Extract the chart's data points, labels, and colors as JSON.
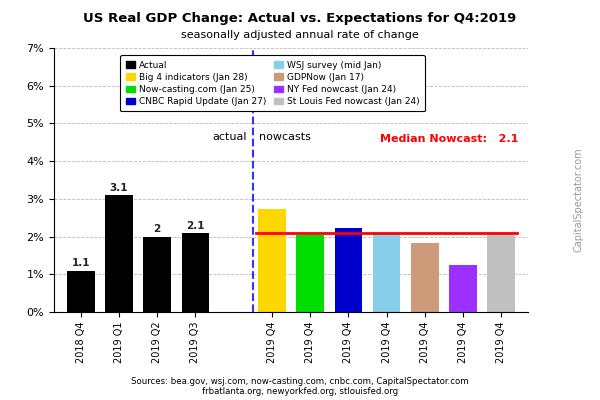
{
  "title": "US Real GDP Change: Actual vs. Expectations for Q4:2019",
  "subtitle": "seasonally adjusted annual rate of change",
  "actual_labels": [
    "2018 Q4",
    "2019 Q1",
    "2019 Q2",
    "2019 Q3"
  ],
  "actual_values": [
    1.1,
    3.1,
    2.0,
    2.1
  ],
  "actual_color": "#000000",
  "nowcast_labels": [
    "2019 Q4",
    "2019 Q4",
    "2019 Q4",
    "2019 Q4",
    "2019 Q4",
    "2019 Q4",
    "2019 Q4"
  ],
  "nowcast_values": [
    2.72,
    2.03,
    2.22,
    2.09,
    1.84,
    1.25,
    2.05
  ],
  "nowcast_colors": [
    "#FFD700",
    "#00DD00",
    "#0000CD",
    "#87CEEB",
    "#CD9B7A",
    "#9B30FF",
    "#C0C0C0"
  ],
  "median_nowcast": 2.1,
  "median_label": "Median Nowcast:",
  "ylim_max": 7,
  "ytick_vals": [
    0,
    1,
    2,
    3,
    4,
    5,
    6,
    7
  ],
  "ytick_labels": [
    "0%",
    "1%",
    "2%",
    "3%",
    "4%",
    "5%",
    "6%",
    "7%"
  ],
  "legend_entries": [
    {
      "label": "Actual",
      "color": "#000000"
    },
    {
      "label": "Big 4 indicators (Jan 28)",
      "color": "#FFD700"
    },
    {
      "label": "Now-casting.com (Jan 25)",
      "color": "#00DD00"
    },
    {
      "label": "CNBC Rapid Update (Jan 27)",
      "color": "#0000CD"
    },
    {
      "label": "WSJ survey (mid Jan)",
      "color": "#87CEEB"
    },
    {
      "label": "GDPNow (Jan 17)",
      "color": "#CD9B7A"
    },
    {
      "label": "NY Fed nowcast (Jan 24)",
      "color": "#9B30FF"
    },
    {
      "label": "St Louis Fed nowcast (Jan 24)",
      "color": "#C0C0C0"
    }
  ],
  "source_line1": "Sources: bea.gov, wsj.com, now-casting.com, cnbc.com, CapitalSpectator.com",
  "source_line2": "frbatlanta.org, newyorkfed.org, stlouisfed.org",
  "watermark": "CapitalSpectator.com",
  "actual_section_label": "actual",
  "nowcast_section_label": "nowcasts",
  "bar_width": 0.72,
  "red_line_color": "#FF0000",
  "dashed_line_color": "#3333FF",
  "background_color": "#FFFFFF",
  "grid_color": "#BBBBBB"
}
